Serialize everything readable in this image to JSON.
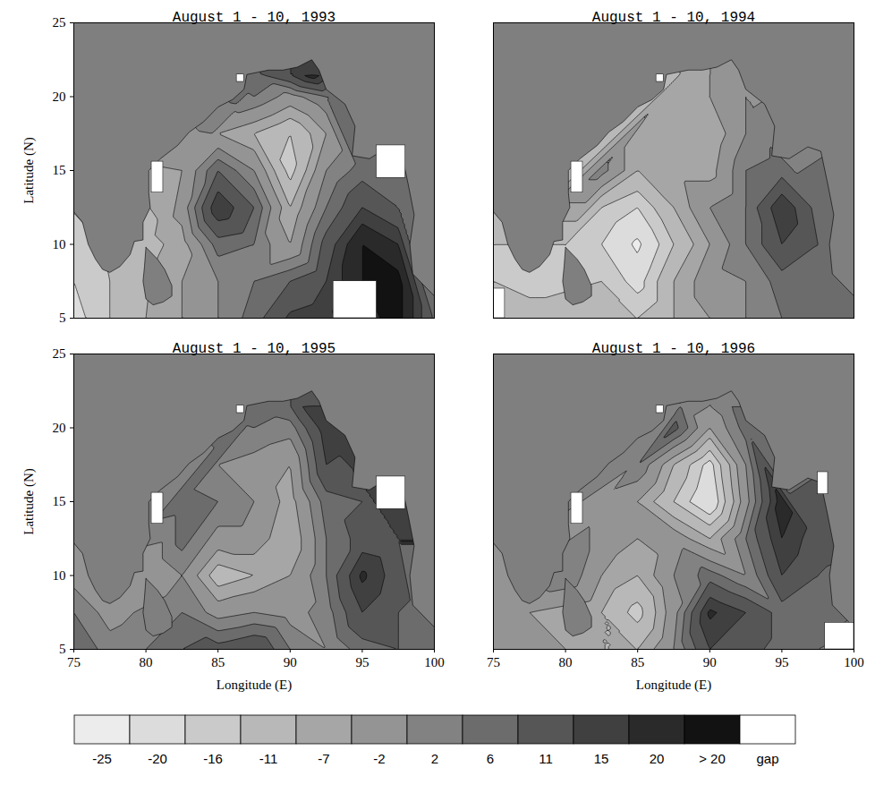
{
  "chart_data": {
    "type": "contour",
    "xlabel": "Longitude (E)",
    "ylabel": "Latitude (N)",
    "xlim": [
      75,
      100
    ],
    "ylim": [
      5,
      25
    ],
    "xticks": [
      75,
      80,
      85,
      90,
      95,
      100
    ],
    "yticks": [
      5,
      10,
      15,
      20,
      25
    ],
    "land": [
      {
        "lon": [
          75,
          100,
          100,
          98.5,
          98.3,
          98.6,
          98.2,
          97.7,
          96.8,
          95.5,
          94.3,
          94.5,
          93.8,
          92.5,
          92,
          91.5,
          90.5,
          89.5,
          88.5,
          87,
          86.8,
          86,
          85,
          84,
          83,
          82.2,
          81,
          80.2,
          80.2,
          80.3,
          79.8,
          79.8,
          79.2,
          78.9,
          78.2,
          77.5,
          77,
          76.5,
          76,
          75.6,
          75,
          75
        ],
        "lat": [
          25,
          25,
          6.5,
          8,
          10,
          12,
          14,
          16.3,
          16.6,
          15.8,
          16,
          18,
          19.5,
          20.5,
          21.8,
          22.5,
          22,
          21.8,
          21.8,
          21.5,
          20.5,
          19.8,
          19.3,
          18.3,
          17.6,
          16.7,
          15.8,
          15,
          13.5,
          12.5,
          11.5,
          10.3,
          10.2,
          9.3,
          8.5,
          8.1,
          8.3,
          9,
          10,
          11.5,
          12.2,
          25
        ]
      },
      {
        "lon": [
          80,
          80.8,
          81.3,
          81.8,
          81.8,
          81.2,
          80.5,
          80,
          79.8,
          79.9,
          80
        ],
        "lat": [
          9.8,
          9,
          8.3,
          7.2,
          6.5,
          6.1,
          5.9,
          6.3,
          7.5,
          8.5,
          9.8
        ]
      }
    ],
    "colorbar": {
      "ticks": [
        -25,
        -20,
        -16,
        -11,
        -7,
        -2,
        2,
        6,
        11,
        15,
        20
      ],
      "colors": [
        "#ececec",
        "#dcdcdc",
        "#cacaca",
        "#b8b8b8",
        "#a6a6a6",
        "#949494",
        "#828282",
        "#6c6c6c",
        "#565656",
        "#404040",
        "#2a2a2a",
        "#121212"
      ],
      "over_label": "> 20",
      "gap_label": "gap"
    },
    "panels": [
      {
        "title": "August 1 - 10, 1993",
        "lon": [
          75,
          77.5,
          80,
          82.5,
          85,
          87.5,
          90,
          92.5,
          95,
          97.5,
          100,
          75,
          77.5,
          82.5,
          85,
          87.5,
          90,
          92.5,
          95,
          97.5,
          75,
          80,
          82.5,
          85,
          87.5,
          90,
          92.5,
          95,
          97.5,
          82.5,
          85,
          87.5,
          90,
          92.5,
          95,
          97.5,
          82.5,
          85,
          87.5,
          90,
          92.5,
          95,
          85,
          87.5,
          90,
          92.5,
          87.5,
          90,
          92.5,
          88,
          90,
          91.5
        ],
        "lat": [
          5,
          5,
          5,
          5,
          5,
          5,
          5,
          5,
          5,
          5,
          5,
          7.5,
          7.5,
          7.5,
          7.5,
          7.5,
          7.5,
          7.5,
          7.5,
          7.5,
          10,
          10,
          10,
          10,
          10,
          10,
          10,
          10,
          10,
          12.5,
          12.5,
          12.5,
          12.5,
          12.5,
          12.5,
          12.5,
          15,
          15,
          15,
          15,
          15,
          15,
          17.5,
          17.5,
          17.5,
          17.5,
          20,
          20,
          20,
          21.5,
          21.5,
          21.5
        ],
        "values": [
          -22,
          -16,
          -11,
          -7,
          -2,
          4,
          12,
          14,
          18,
          22,
          5,
          -20,
          -16,
          -7,
          -2,
          2,
          6,
          11,
          20,
          22,
          -18,
          -13,
          -9,
          4,
          2,
          -7,
          8,
          20,
          15,
          -5,
          15,
          6,
          -11,
          2,
          11,
          6,
          -7,
          6,
          -2,
          -18,
          -2,
          4,
          -7,
          -11,
          -16,
          -7,
          2,
          -4,
          2,
          6,
          11,
          18
        ],
        "gaps": [
          {
            "lon": [
              80.4,
              81.2
            ],
            "lat": [
              13.5,
              15.6
            ]
          },
          {
            "lon": [
              96,
              98
            ],
            "lat": [
              14.5,
              16.7
            ]
          },
          {
            "lon": [
              93,
              96
            ],
            "lat": [
              5,
              7.5
            ]
          },
          {
            "lon": [
              86.3,
              86.8
            ],
            "lat": [
              21,
              21.5
            ]
          }
        ]
      },
      {
        "title": "August 1 - 10, 1994",
        "lon": [
          75,
          77.5,
          80,
          82.5,
          85,
          87.5,
          90,
          92.5,
          95,
          97.5,
          100,
          75,
          77.5,
          82.5,
          85,
          87.5,
          90,
          92.5,
          95,
          97.5,
          75,
          80,
          82.5,
          85,
          87.5,
          90,
          92.5,
          95,
          97.5,
          82.5,
          85,
          87.5,
          90,
          92.5,
          95,
          97.5,
          82.5,
          85,
          87.5,
          90,
          92.5,
          95,
          85,
          87.5,
          90,
          92.5,
          87.5,
          90,
          92.5,
          88,
          90,
          91.5
        ],
        "lat": [
          5,
          5,
          5,
          5,
          5,
          5,
          5,
          5,
          5,
          5,
          5,
          7.5,
          7.5,
          7.5,
          7.5,
          7.5,
          7.5,
          7.5,
          7.5,
          7.5,
          10,
          10,
          10,
          10,
          10,
          10,
          10,
          10,
          10,
          12.5,
          12.5,
          12.5,
          12.5,
          12.5,
          12.5,
          12.5,
          15,
          15,
          15,
          15,
          15,
          15,
          17.5,
          17.5,
          17.5,
          17.5,
          20,
          20,
          20,
          21.5,
          21.5,
          21.5
        ],
        "values": [
          -11,
          -11,
          -11,
          -16,
          -16,
          -11,
          -7,
          -2,
          2,
          6,
          2,
          -16,
          -20,
          -16,
          -22,
          -11,
          -4,
          -2,
          4,
          6,
          -16,
          -16,
          -20,
          -26,
          -16,
          -7,
          2,
          11,
          6,
          -16,
          -20,
          -11,
          -2,
          2,
          15,
          4,
          0,
          -11,
          -9,
          -9,
          2,
          4,
          -11,
          -11,
          -11,
          -2,
          -9,
          -7,
          -2,
          -11,
          -7,
          -4
        ],
        "gaps": [
          {
            "lon": [
              80.4,
              81.2
            ],
            "lat": [
              13.5,
              15.6
            ]
          },
          {
            "lon": [
              75,
              75.8
            ],
            "lat": [
              5,
              7
            ]
          },
          {
            "lon": [
              86.3,
              86.8
            ],
            "lat": [
              21,
              21.5
            ]
          }
        ]
      },
      {
        "title": "August 1 - 10, 1995",
        "lon": [
          75,
          77.5,
          80,
          82.5,
          85,
          87.5,
          90,
          92.5,
          95,
          97.5,
          100,
          75,
          77.5,
          82.5,
          85,
          87.5,
          90,
          92.5,
          95,
          97.5,
          75,
          80,
          82.5,
          85,
          87.5,
          90,
          92.5,
          95,
          97.5,
          82.5,
          85,
          87.5,
          90,
          92.5,
          95,
          97.5,
          82.5,
          85,
          87.5,
          90,
          92.5,
          95,
          85,
          87.5,
          90,
          92.5,
          87.5,
          90,
          92.5,
          88,
          90,
          91.5
        ],
        "lat": [
          5,
          5,
          5,
          5,
          5,
          5,
          5,
          5,
          5,
          5,
          5,
          7.5,
          7.5,
          7.5,
          7.5,
          7.5,
          7.5,
          7.5,
          7.5,
          7.5,
          10,
          10,
          10,
          10,
          10,
          10,
          10,
          10,
          10,
          12.5,
          12.5,
          12.5,
          12.5,
          12.5,
          12.5,
          12.5,
          15,
          15,
          15,
          15,
          15,
          15,
          17.5,
          17.5,
          17.5,
          17.5,
          20,
          20,
          20,
          21.5,
          21.5,
          21.5
        ],
        "values": [
          6,
          0,
          2,
          6,
          8,
          11,
          2,
          -2,
          4,
          6,
          2,
          2,
          -4,
          2,
          -4,
          -2,
          -4,
          0,
          11,
          6,
          -4,
          -7,
          -2,
          -14,
          -11,
          -7,
          2,
          16,
          8,
          4,
          -4,
          -4,
          -11,
          2,
          8,
          6,
          4,
          2,
          -2,
          -9,
          4,
          6,
          -2,
          -4,
          -7,
          11,
          2,
          0,
          14,
          4,
          6,
          15
        ],
        "gaps": [
          {
            "lon": [
              80.4,
              81.2
            ],
            "lat": [
              13.5,
              15.6
            ]
          },
          {
            "lon": [
              96,
              98
            ],
            "lat": [
              14.5,
              16.7
            ]
          },
          {
            "lon": [
              86.3,
              86.8
            ],
            "lat": [
              21,
              21.5
            ]
          }
        ]
      },
      {
        "title": "August 1 - 10, 1996",
        "lon": [
          75,
          77.5,
          80,
          82.5,
          85,
          87.5,
          90,
          92.5,
          95,
          97.5,
          100,
          75,
          77.5,
          82.5,
          85,
          87.5,
          90,
          92.5,
          95,
          97.5,
          75,
          80,
          82.5,
          85,
          87.5,
          90,
          92.5,
          95,
          97.5,
          82.5,
          85,
          87.5,
          90,
          92.5,
          95,
          97.5,
          82.5,
          85,
          87.5,
          90,
          92.5,
          95,
          85,
          87.5,
          90,
          92.5,
          87.5,
          90,
          92.5,
          88,
          90,
          91.5
        ],
        "lat": [
          5,
          5,
          5,
          5,
          5,
          5,
          5,
          5,
          5,
          5,
          5,
          7.5,
          7.5,
          7.5,
          7.5,
          7.5,
          7.5,
          7.5,
          7.5,
          7.5,
          10,
          10,
          10,
          10,
          10,
          10,
          10,
          10,
          10,
          12.5,
          12.5,
          12.5,
          12.5,
          12.5,
          12.5,
          12.5,
          15,
          15,
          15,
          15,
          15,
          15,
          17.5,
          17.5,
          17.5,
          17.5,
          20,
          20,
          20,
          21.5,
          21.5,
          21.5
        ],
        "values": [
          -2,
          -4,
          -7,
          -11,
          -11,
          -2,
          11,
          8,
          4,
          2,
          0,
          -4,
          -7,
          -11,
          -18,
          -4,
          16,
          11,
          4,
          6,
          -4,
          2,
          -7,
          -11,
          -2,
          4,
          -2,
          11,
          6,
          -4,
          -7,
          -4,
          -11,
          2,
          15,
          8,
          -4,
          -7,
          -16,
          -25,
          -4,
          18,
          2,
          -11,
          -22,
          -2,
          8,
          -7,
          4,
          2,
          -2,
          2
        ],
        "gaps": [
          {
            "lon": [
              80.4,
              81.2
            ],
            "lat": [
              13.5,
              15.6
            ]
          },
          {
            "lon": [
              97.5,
              98.2
            ],
            "lat": [
              15.5,
              17
            ]
          },
          {
            "lon": [
              98,
              100
            ],
            "lat": [
              5,
              6.8
            ]
          },
          {
            "lon": [
              86.3,
              86.8
            ],
            "lat": [
              21,
              21.5
            ]
          }
        ]
      }
    ]
  }
}
